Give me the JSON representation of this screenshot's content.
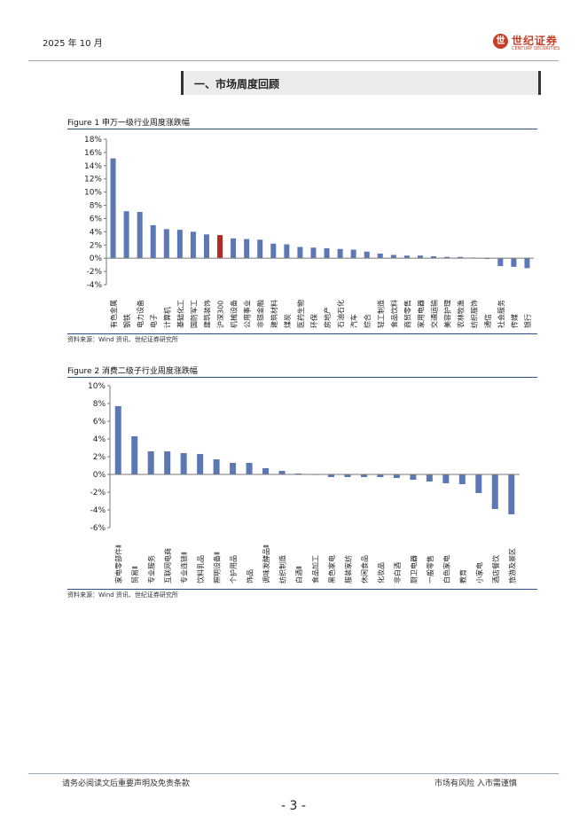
{
  "header": {
    "date": "2025 年 10 月",
    "logo_cn": "世纪证券",
    "logo_en": "CENTURY SECURITIES",
    "logo_seal": "世"
  },
  "section": {
    "title": "一、市场周度回顾"
  },
  "figure1": {
    "title": "Figure 1  申万一级行业周度涨跌幅",
    "source": "资料来源：Wind 资讯、世纪证券研究所"
  },
  "figure2": {
    "title": "Figure 2 消费二级子行业周度涨跌幅",
    "source": "资料来源：Wind 资讯、世纪证券研究所"
  },
  "footer": {
    "disclaimer": "请务必阅读文后重要声明及免责条款",
    "risk": "市场有风险  入市需谨慎",
    "page": "- 3 -"
  },
  "colors": {
    "bar": "#5b78b4",
    "highlight": "#b22a24",
    "negative1": "#8c8c8c"
  },
  "chart_data": [
    {
      "type": "bar",
      "title": "申万一级行业周度涨跌幅",
      "ylim": [
        -4,
        18
      ],
      "yticks": [
        -4,
        -2,
        0,
        2,
        4,
        6,
        8,
        10,
        12,
        14,
        16,
        18
      ],
      "ytick_labels": [
        "-4%",
        "-2%",
        "0%",
        "2%",
        "4%",
        "6%",
        "8%",
        "10%",
        "12%",
        "14%",
        "16%",
        "18%"
      ],
      "categories": [
        "有色金属",
        "钢铁",
        "电力设备",
        "电子",
        "计算机",
        "基础化工",
        "国防军工",
        "建筑装饰",
        "沪深300",
        "机械设备",
        "公用事业",
        "非银金融",
        "建筑材料",
        "煤炭",
        "医药生物",
        "环保",
        "房地产",
        "石油石化",
        "汽车",
        "综合",
        "轻工制造",
        "食品饮料",
        "商贸零售",
        "家用电器",
        "交通运输",
        "美容护理",
        "农林牧渔",
        "纺织服饰",
        "通信",
        "社会服务",
        "传媒",
        "银行"
      ],
      "values": [
        15.1,
        7.1,
        7.0,
        5.0,
        4.4,
        4.3,
        4.0,
        3.6,
        3.5,
        3.0,
        2.9,
        2.8,
        2.2,
        2.1,
        1.7,
        1.6,
        1.5,
        1.4,
        1.3,
        1.0,
        0.7,
        0.5,
        0.4,
        0.4,
        0.3,
        0.2,
        0.2,
        0.1,
        -0.1,
        -1.2,
        -1.3,
        -1.5
      ],
      "highlight_category": "沪深300"
    },
    {
      "type": "bar",
      "title": "消费二级子行业周度涨跌幅",
      "ylim": [
        -6,
        10
      ],
      "yticks": [
        -6,
        -4,
        -2,
        0,
        2,
        4,
        6,
        8,
        10
      ],
      "ytick_labels": [
        "-6%",
        "-4%",
        "-2%",
        "0%",
        "2%",
        "4%",
        "6%",
        "8%",
        "10%"
      ],
      "categories": [
        "家电零部件Ⅱ",
        "贸易Ⅱ",
        "专业服务",
        "互联网电商",
        "专业连锁Ⅱ",
        "饮料乳品",
        "照明设备Ⅱ",
        "个护用品",
        "饰品",
        "调味发酵品Ⅱ",
        "纺织制造",
        "白酒Ⅱ",
        "食品加工",
        "黑色家电",
        "服装家纺",
        "休闲食品",
        "化妆品",
        "非白酒",
        "厨卫电器",
        "一般零售",
        "白色家电",
        "教育",
        "小家电",
        "酒店餐饮",
        "旅游及景区"
      ],
      "values": [
        7.7,
        4.3,
        2.6,
        2.6,
        2.4,
        2.3,
        1.7,
        1.3,
        1.3,
        0.7,
        0.4,
        0.1,
        0.0,
        -0.3,
        -0.3,
        -0.3,
        -0.3,
        -0.4,
        -0.6,
        -0.8,
        -1.0,
        -1.1,
        -2.1,
        -3.9,
        -4.5
      ]
    }
  ]
}
